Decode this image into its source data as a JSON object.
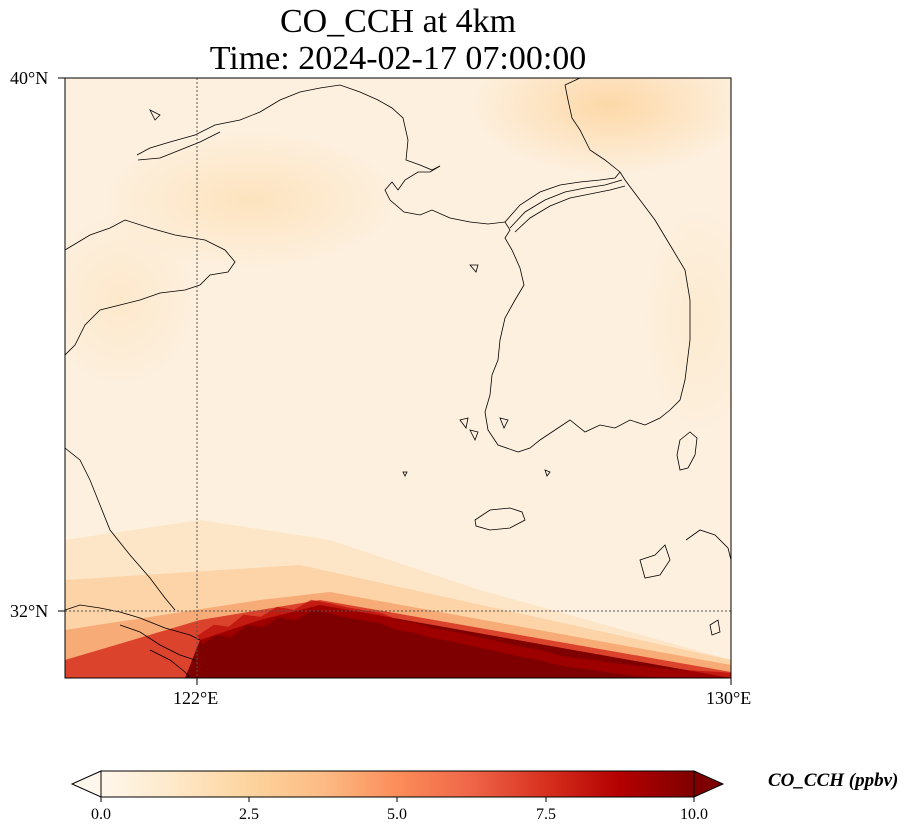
{
  "figure": {
    "title_line1": "CO_CCH at 4km",
    "title_line2": "Time: 2024-02-17 07:00:00"
  },
  "map": {
    "projection": "PlateCarree",
    "lon_range": [
      118,
      130
    ],
    "lat_range": [
      30.8,
      40
    ],
    "lat_ticks": [
      {
        "value": 40,
        "label": "40°N"
      },
      {
        "value": 32,
        "label": "32°N"
      }
    ],
    "lon_ticks": [
      {
        "value": 122,
        "label": "122°E"
      },
      {
        "value": 130,
        "label": "130°E"
      }
    ],
    "gridlines": "dotted at 122°E and 32°N",
    "coastlines": true,
    "background_field": "pale cream (about 0.3–1.5 ppbv) over most of the domain; slightly higher (~2 ppbv) tint near the upper-right and over the northern Yellow Sea",
    "high_region": "concentrations above 10 ppbv in the southern band, boundary running from about 30.8°N,121°E up to about 32.1°N,122.8°E and down to about 30.8°N,130°E"
  },
  "colorbar": {
    "colormap": "OrRd",
    "label": "CO_CCH (ppbv)",
    "min": 0,
    "max": 10,
    "extend": "both",
    "tick_labels": [
      "0.0",
      "2.5",
      "5.0",
      "7.5",
      "10.0"
    ],
    "colors": [
      "#fff7ec",
      "#fee8c8",
      "#fdd49e",
      "#fdbb84",
      "#fc8d59",
      "#ef6548",
      "#d7301f",
      "#b30000",
      "#7f0000"
    ]
  }
}
